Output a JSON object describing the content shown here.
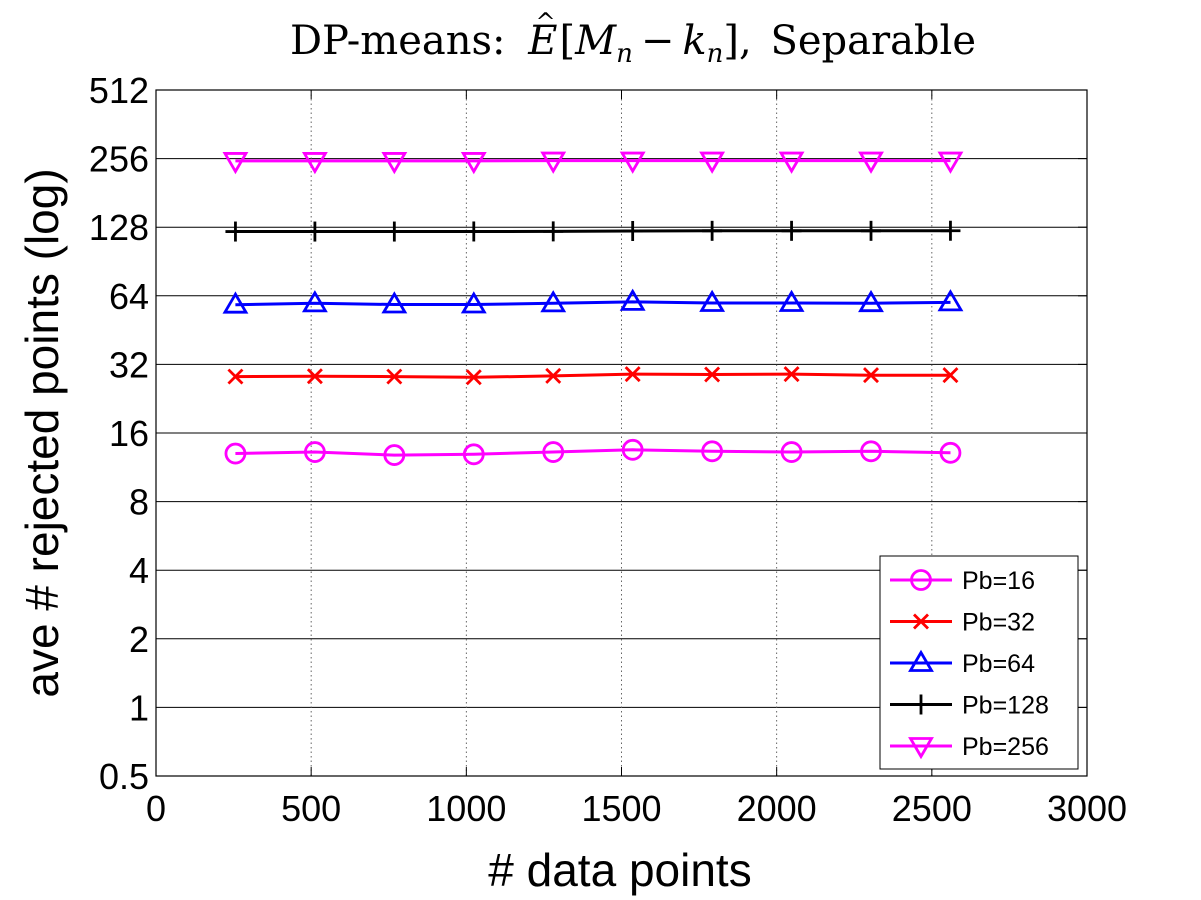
{
  "chart_data": {
    "type": "line",
    "title": "DP-means: Ê[M_n − k_n], Separable",
    "title_parts": {
      "prefix": "DP-means:",
      "E": "E",
      "hat": "^",
      "open": "[",
      "M": "M",
      "n1": "n",
      "minus": "−",
      "k": "k",
      "n2": "n",
      "close": "],",
      "suffix": "Separable"
    },
    "xlabel": "# data points",
    "ylabel": "ave # rejected points (log)",
    "xlim": [
      0,
      3000
    ],
    "ylim": [
      0.5,
      512
    ],
    "yscale": "log2",
    "xticks": [
      0,
      500,
      1000,
      1500,
      2000,
      2500,
      3000
    ],
    "xtick_labels": [
      "0",
      "500",
      "1000",
      "1500",
      "2000",
      "2500",
      "3000"
    ],
    "yticks": [
      0.5,
      1,
      2,
      4,
      8,
      16,
      32,
      64,
      128,
      256,
      512
    ],
    "ytick_labels": [
      "0.5",
      "1",
      "2",
      "4",
      "8",
      "16",
      "32",
      "64",
      "128",
      "256",
      "512"
    ],
    "grid": "major y solid, major x dotted",
    "legend_position": "bottom-right",
    "x": [
      256,
      512,
      768,
      1024,
      1280,
      1536,
      1792,
      2048,
      2304,
      2560
    ],
    "series": [
      {
        "name": "Pb=16",
        "marker": "circle",
        "color": "#ff00ff",
        "values": [
          13.0,
          13.2,
          12.8,
          12.9,
          13.2,
          13.5,
          13.3,
          13.2,
          13.3,
          13.1
        ]
      },
      {
        "name": "Pb=32",
        "marker": "x",
        "color": "#ff0000",
        "values": [
          28.3,
          28.4,
          28.3,
          28.1,
          28.5,
          29.0,
          28.9,
          29.0,
          28.7,
          28.7
        ]
      },
      {
        "name": "Pb=64",
        "marker": "triangle-up",
        "color": "#0000ff",
        "values": [
          58.5,
          59.3,
          58.6,
          58.6,
          59.3,
          60.2,
          59.5,
          59.5,
          59.4,
          59.9
        ]
      },
      {
        "name": "Pb=128",
        "marker": "plus",
        "color": "#000000",
        "values": [
          122.5,
          122.5,
          122.5,
          122.6,
          122.7,
          123.2,
          123.4,
          123.4,
          123.4,
          123.5
        ]
      },
      {
        "name": "Pb=256",
        "marker": "triangle-down",
        "color": "#ff00ff",
        "values": [
          250,
          250,
          250,
          250,
          251,
          251,
          251,
          251,
          251,
          251
        ]
      }
    ]
  }
}
